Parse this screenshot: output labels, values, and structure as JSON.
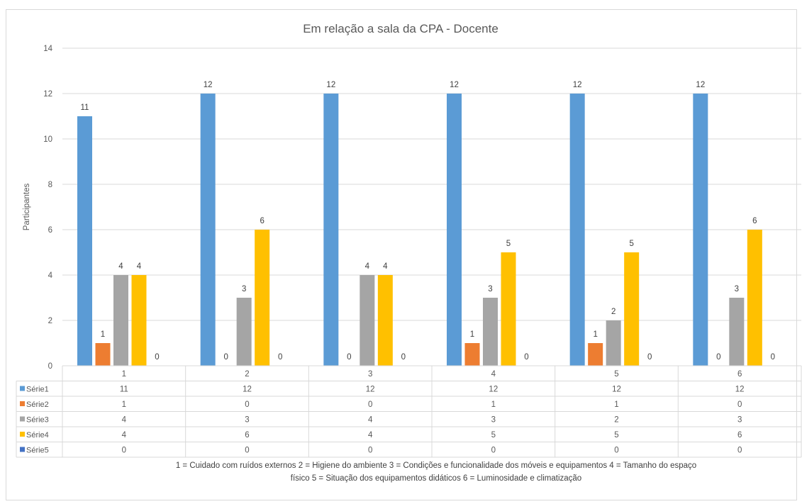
{
  "chart_data": {
    "type": "bar",
    "title": "Em relação a sala da CPA - Docente",
    "ylabel": "Participantes",
    "xlabel": "",
    "ylim": [
      0,
      14
    ],
    "yticks": [
      0,
      2,
      4,
      6,
      8,
      10,
      12,
      14
    ],
    "categories": [
      "1",
      "2",
      "3",
      "4",
      "5",
      "6"
    ],
    "grid": true,
    "legend": "data-table",
    "series": [
      {
        "name": "Série1",
        "color": "#5b9bd5",
        "values": [
          11,
          12,
          12,
          12,
          12,
          12
        ]
      },
      {
        "name": "Série2",
        "color": "#ed7d31",
        "values": [
          1,
          0,
          0,
          1,
          1,
          0
        ]
      },
      {
        "name": "Série3",
        "color": "#a5a5a5",
        "values": [
          4,
          3,
          4,
          3,
          2,
          3
        ]
      },
      {
        "name": "Série4",
        "color": "#ffc000",
        "values": [
          4,
          6,
          4,
          5,
          5,
          6
        ]
      },
      {
        "name": "Série5",
        "color": "#4472c4",
        "values": [
          0,
          0,
          0,
          0,
          0,
          0
        ]
      }
    ]
  },
  "caption": {
    "line1": "1 = Cuidado com ruídos externos    2 = Higiene do ambiente    3 = Condições e funcionalidade dos móveis e equipamentos    4 = Tamanho do espaço",
    "line2": "físico    5 = Situação dos equipamentos didáticos    6 = Luminosidade e climatização"
  }
}
